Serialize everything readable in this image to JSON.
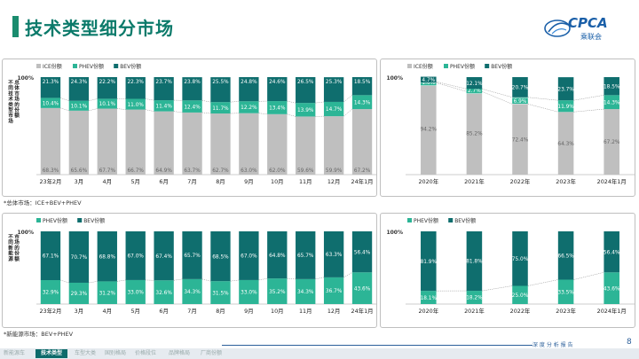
{
  "page": {
    "title": "技术类型细分市场",
    "logo_text": "CPCA",
    "logo_sub": "乘联会",
    "note_top": "*总体市场：ICE+BEV+PHEV",
    "note_bottom": "*新能源市场：BEV+PHEV",
    "footer_label": "深 度 分 析 报 告",
    "page_number": "8",
    "tabs": [
      "新能源车",
      "技术类型",
      "车型大类",
      "国别格局",
      "价格段位",
      "品牌格局",
      "厂商份额"
    ],
    "active_tab": 1
  },
  "colors": {
    "ice": "#bfbfbf",
    "phev": "#2cb596",
    "bev": "#0f6e6e",
    "accent": "#0b7a6a"
  },
  "chart_data": [
    {
      "type": "bar",
      "stacked": true,
      "ylabel": "不同技术类型市场总体市场的份额",
      "ylim": [
        0,
        100
      ],
      "y_top_label": "100%",
      "categories": [
        "23年2月",
        "3月",
        "4月",
        "5月",
        "6月",
        "7月",
        "8月",
        "9月",
        "10月",
        "11月",
        "12月",
        "24年1月"
      ],
      "series": [
        {
          "name": "ICE份额",
          "color": "#bfbfbf",
          "values": [
            68.3,
            65.6,
            67.7,
            66.7,
            64.9,
            63.7,
            62.7,
            63.0,
            62.0,
            59.6,
            59.9,
            67.2
          ],
          "labels": [
            "68.3%",
            "65.6%",
            "67.7%",
            "66.7%",
            "64.9%",
            "63.7%",
            "62.7%",
            "63.0%",
            "62.0%",
            "59.6%",
            "59.9%",
            "67.2%"
          ]
        },
        {
          "name": "PHEV份额",
          "color": "#2cb596",
          "values": [
            10.4,
            10.1,
            10.1,
            11.0,
            11.4,
            12.4,
            11.7,
            12.2,
            13.4,
            13.9,
            14.7,
            14.3
          ],
          "labels": [
            "10.4%",
            "10.1%",
            "10.1%",
            "11.0%",
            "11.4%",
            "12.4%",
            "11.7%",
            "12.2%",
            "13.4%",
            "13.9%",
            "14.7%",
            "14.3%"
          ]
        },
        {
          "name": "BEV份额",
          "color": "#0f6e6e",
          "values": [
            21.3,
            24.3,
            22.2,
            22.3,
            23.7,
            23.8,
            25.5,
            24.8,
            24.6,
            26.5,
            25.3,
            18.5
          ],
          "labels": [
            "21.3%",
            "24.3%",
            "22.2%",
            "22.3%",
            "23.7%",
            "23.8%",
            "25.5%",
            "24.8%",
            "24.6%",
            "26.5%",
            "25.3%",
            "18.5%"
          ]
        }
      ]
    },
    {
      "type": "bar",
      "stacked": true,
      "ylim": [
        0,
        100
      ],
      "y_top_label": "100%",
      "categories": [
        "2020年",
        "2021年",
        "2022年",
        "2023年",
        "2024年1月"
      ],
      "series": [
        {
          "name": "ICE份额",
          "color": "#bfbfbf",
          "values": [
            94.2,
            85.2,
            72.4,
            64.3,
            67.2
          ],
          "labels": [
            "94.2%",
            "85.2%",
            "72.4%",
            "64.3%",
            "67.2%"
          ]
        },
        {
          "name": "PHEV份额",
          "color": "#2cb596",
          "values": [
            1.0,
            2.7,
            6.9,
            11.9,
            14.3
          ],
          "labels": [
            "1.0%",
            "2.7%",
            "6.9%",
            "11.9%",
            "14.3%"
          ]
        },
        {
          "name": "BEV份额",
          "color": "#0f6e6e",
          "values": [
            4.7,
            12.1,
            20.7,
            23.7,
            18.5
          ],
          "labels": [
            "4.7%",
            "12.1%",
            "20.7%",
            "23.7%",
            "18.5%"
          ]
        }
      ]
    },
    {
      "type": "bar",
      "stacked": true,
      "ylabel": "不同新能源市场的份额",
      "ylim": [
        0,
        100
      ],
      "y_top_label": "100%",
      "categories": [
        "23年2月",
        "3月",
        "4月",
        "5月",
        "6月",
        "7月",
        "8月",
        "9月",
        "10月",
        "11月",
        "12月",
        "24年1月"
      ],
      "series": [
        {
          "name": "PHEV份额",
          "color": "#2cb596",
          "values": [
            32.9,
            29.3,
            31.2,
            33.0,
            32.6,
            34.3,
            31.5,
            33.0,
            35.2,
            34.3,
            36.7,
            43.6
          ],
          "labels": [
            "32.9%",
            "29.3%",
            "31.2%",
            "33.0%",
            "32.6%",
            "34.3%",
            "31.5%",
            "33.0%",
            "35.2%",
            "34.3%",
            "36.7%",
            "43.6%"
          ]
        },
        {
          "name": "BEV份额",
          "color": "#0f6e6e",
          "values": [
            67.1,
            70.7,
            68.8,
            67.0,
            67.4,
            65.7,
            68.5,
            67.0,
            64.8,
            65.7,
            63.3,
            56.4
          ],
          "labels": [
            "67.1%",
            "70.7%",
            "68.8%",
            "67.0%",
            "67.4%",
            "65.7%",
            "68.5%",
            "67.0%",
            "64.8%",
            "65.7%",
            "63.3%",
            "56.4%"
          ]
        }
      ]
    },
    {
      "type": "bar",
      "stacked": true,
      "ylim": [
        0,
        100
      ],
      "y_top_label": "100%",
      "categories": [
        "2020年",
        "2021年",
        "2022年",
        "2023年",
        "2024年1月"
      ],
      "series": [
        {
          "name": "PHEV份额",
          "color": "#2cb596",
          "values": [
            18.1,
            18.2,
            25.0,
            33.5,
            43.6
          ],
          "labels": [
            "18.1%",
            "18.2%",
            "25.0%",
            "33.5%",
            "43.6%"
          ]
        },
        {
          "name": "BEV份额",
          "color": "#0f6e6e",
          "values": [
            81.9,
            81.8,
            75.0,
            66.5,
            56.4
          ],
          "labels": [
            "81.9%",
            "81.8%",
            "75.0%",
            "66.5%",
            "56.4%"
          ]
        }
      ]
    }
  ]
}
